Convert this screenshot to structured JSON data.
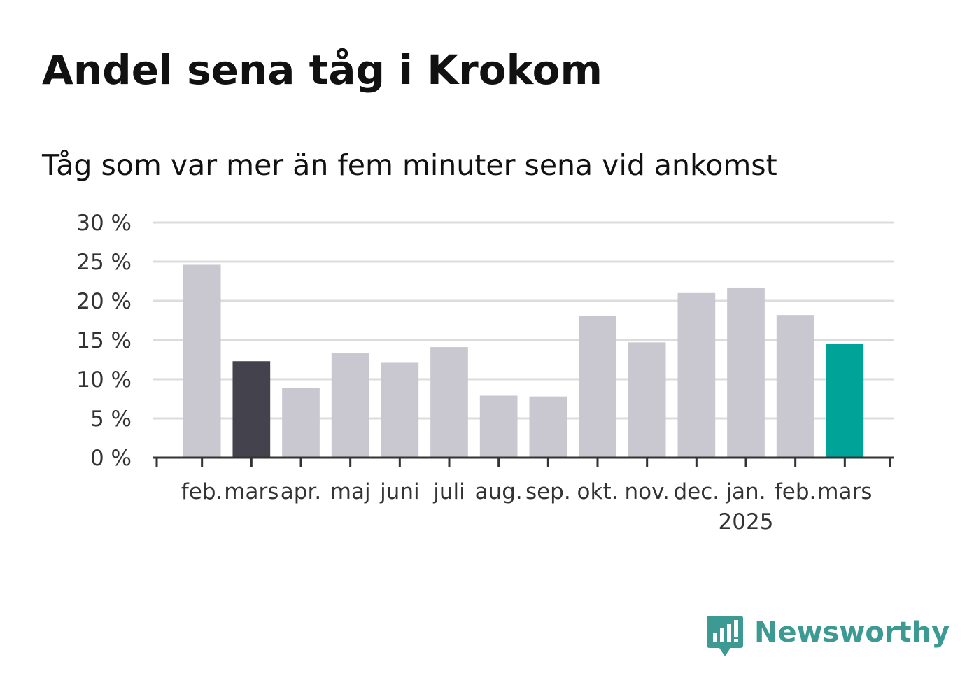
{
  "title": "Andel sena tåg i Krokom",
  "subtitle": "Tåg som var mer än fem minuter sena vid ankomst",
  "brand": {
    "name": "Newsworthy",
    "color": "#3c9a93",
    "icon": "chart-speech-bubble-icon"
  },
  "colors": {
    "default_bar": "#c9c8d1",
    "same_month_last_year_bar": "#43424d",
    "latest_bar": "#00a398",
    "grid": "#dcdcdc",
    "axis": "#333333"
  },
  "chart_data": {
    "type": "bar",
    "title": "Andel sena tåg i Krokom",
    "subtitle": "Tåg som var mer än fem minuter sena vid ankomst",
    "xlabel": "",
    "ylabel": "",
    "ylim": [
      0,
      30
    ],
    "yticks": [
      "0 %",
      "5 %",
      "10 %",
      "15 %",
      "20 %",
      "25 %",
      "30 %"
    ],
    "grid": true,
    "categories": [
      "feb.",
      "mars",
      "apr.",
      "maj",
      "juni",
      "juli",
      "aug.",
      "sep.",
      "okt.",
      "nov.",
      "dec.",
      "jan.",
      "feb.",
      "mars"
    ],
    "year_label": {
      "category_index": 11,
      "text": "2025"
    },
    "values": [
      24.6,
      12.3,
      8.9,
      13.3,
      12.1,
      14.1,
      7.9,
      7.8,
      18.1,
      14.7,
      21.0,
      21.7,
      18.2,
      14.5
    ],
    "highlight": {
      "1": "same_month_last_year_bar",
      "13": "latest_bar"
    }
  }
}
